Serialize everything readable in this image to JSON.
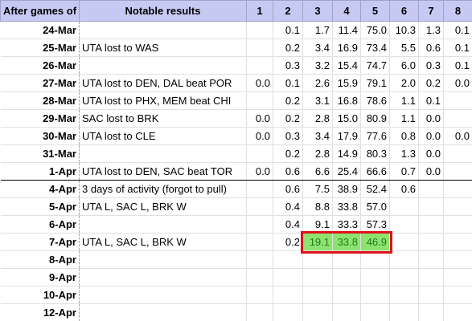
{
  "table": {
    "columns": [
      "After games of",
      "Notable results",
      "1",
      "2",
      "3",
      "4",
      "5",
      "6",
      "7",
      "8"
    ],
    "rows": [
      {
        "date": "24-Mar",
        "values": {
          "2": "0.1",
          "3": "1.7",
          "4": "11.4",
          "5": "75.0",
          "6": "10.3",
          "7": "1.3",
          "8": "0.1"
        }
      },
      {
        "date": "25-Mar",
        "note": "UTA lost to WAS",
        "values": {
          "2": "0.2",
          "3": "3.4",
          "4": "16.9",
          "5": "73.4",
          "6": "5.5",
          "7": "0.6",
          "8": "0.1"
        }
      },
      {
        "date": "26-Mar",
        "values": {
          "2": "0.3",
          "3": "3.2",
          "4": "15.4",
          "5": "74.7",
          "6": "6.0",
          "7": "0.3",
          "8": "0.1"
        }
      },
      {
        "date": "27-Mar",
        "note": "UTA lost to DEN, DAL beat POR",
        "values": {
          "1": "0.0",
          "2": "0.1",
          "3": "2.6",
          "4": "15.9",
          "5": "79.1",
          "6": "2.0",
          "7": "0.2",
          "8": "0.0"
        }
      },
      {
        "date": "28-Mar",
        "note": "UTA lost to PHX, MEM beat CHI",
        "values": {
          "2": "0.2",
          "3": "3.1",
          "4": "16.8",
          "5": "78.6",
          "6": "1.1",
          "7": "0.1"
        }
      },
      {
        "date": "29-Mar",
        "note": "SAC lost to BRK",
        "values": {
          "1": "0.0",
          "2": "0.2",
          "3": "2.8",
          "4": "15.0",
          "5": "80.9",
          "6": "1.1",
          "7": "0.0"
        }
      },
      {
        "date": "30-Mar",
        "note": "UTA lost to CLE",
        "values": {
          "1": "0.0",
          "2": "0.3",
          "3": "3.4",
          "4": "17.9",
          "5": "77.6",
          "6": "0.8",
          "7": "0.0",
          "8": "0.0"
        }
      },
      {
        "date": "31-Mar",
        "values": {
          "2": "0.2",
          "3": "2.8",
          "4": "14.9",
          "5": "80.3",
          "6": "1.3",
          "7": "0.0"
        }
      },
      {
        "date": "1-Apr",
        "note": "UTA lost to DEN, SAC beat TOR",
        "values": {
          "1": "0.0",
          "2": "0.6",
          "3": "6.6",
          "4": "25.4",
          "5": "66.6",
          "6": "0.7",
          "7": "0.0"
        }
      },
      {
        "date": "4-Apr",
        "note": "3 days of activity (forgot to pull)",
        "values": {
          "2": "0.6",
          "3": "7.5",
          "4": "38.9",
          "5": "52.4",
          "6": "0.6"
        }
      },
      {
        "date": "5-Apr",
        "note": "UTA L, SAC L, BRK W",
        "values": {
          "2": "0.4",
          "3": "8.8",
          "4": "33.8",
          "5": "57.0"
        }
      },
      {
        "date": "6-Apr",
        "values": {
          "2": "0.4",
          "3": "9.1",
          "4": "33.3",
          "5": "57.3"
        }
      },
      {
        "date": "7-Apr",
        "note": "UTA L, SAC L, BRK W",
        "values": {
          "2": "0.2",
          "3": "19.1",
          "4": "33.8",
          "5": "46.9"
        },
        "highlight_columns": [
          "3",
          "4",
          "5"
        ]
      },
      {
        "date": "8-Apr"
      },
      {
        "date": "9-Apr"
      },
      {
        "date": "10-Apr"
      },
      {
        "date": "12-Apr"
      }
    ]
  }
}
